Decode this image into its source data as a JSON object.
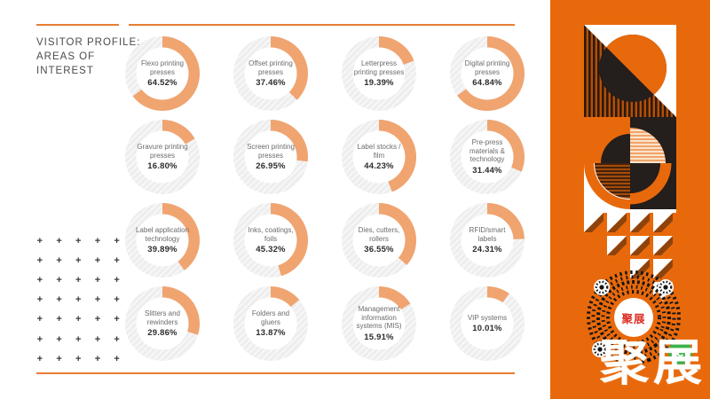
{
  "page": {
    "background": "#ffffff",
    "accent_line_color": "#e87e33"
  },
  "header": {
    "title": "VISITOR PROFILE:\nAREAS OF\nINTEREST"
  },
  "chart_data": {
    "type": "pie",
    "subtype": "donut-small-multiples",
    "title": "Visitor profile: areas of interest",
    "unit": "%",
    "grid": {
      "rows": 4,
      "cols": 4
    },
    "arc_start": "top",
    "arc_direction": "clockwise",
    "colors": {
      "arc": "#f0a470",
      "track": "#ededed",
      "label": "#6b6b6b",
      "value": "#2d2d2d"
    },
    "items": [
      {
        "label": "Flexo printing presses",
        "value": 64.52,
        "display": "64.52%"
      },
      {
        "label": "Offset printing presses",
        "value": 37.46,
        "display": "37.46%"
      },
      {
        "label": "Letterpress printing presses",
        "value": 19.39,
        "display": "19.39%"
      },
      {
        "label": "Digital printing presses",
        "value": 64.84,
        "display": "64.84%"
      },
      {
        "label": "Gravure printing presses",
        "value": 16.8,
        "display": "16.80%"
      },
      {
        "label": "Screen printing presses",
        "value": 26.95,
        "display": "26.95%"
      },
      {
        "label": "Label stocks / film",
        "value": 44.23,
        "display": "44.23%"
      },
      {
        "label": "Pre-press materials & technology",
        "value": 31.44,
        "display": "31.44%"
      },
      {
        "label": "Label application technology",
        "value": 39.89,
        "display": "39.89%"
      },
      {
        "label": "Inks, coatings, foils",
        "value": 45.32,
        "display": "45.32%"
      },
      {
        "label": "Dies, cutters, rollers",
        "value": 36.55,
        "display": "36.55%"
      },
      {
        "label": "RFID/smart labels",
        "value": 24.31,
        "display": "24.31%"
      },
      {
        "label": "Slitters and rewinders",
        "value": 29.86,
        "display": "29.86%"
      },
      {
        "label": "Folders and gluers",
        "value": 13.87,
        "display": "13.87%"
      },
      {
        "label": "Management information systems (MIS)",
        "value": 15.91,
        "display": "15.91%"
      },
      {
        "label": "VIP systems",
        "value": 10.01,
        "display": "10.01%"
      }
    ]
  },
  "decor": {
    "plus_symbol": "+",
    "plus_cols": 5,
    "plus_rows": 7
  },
  "sidebar": {
    "background": "#e8690b",
    "qr_center_label": "聚展",
    "brand_label": "聚展"
  }
}
